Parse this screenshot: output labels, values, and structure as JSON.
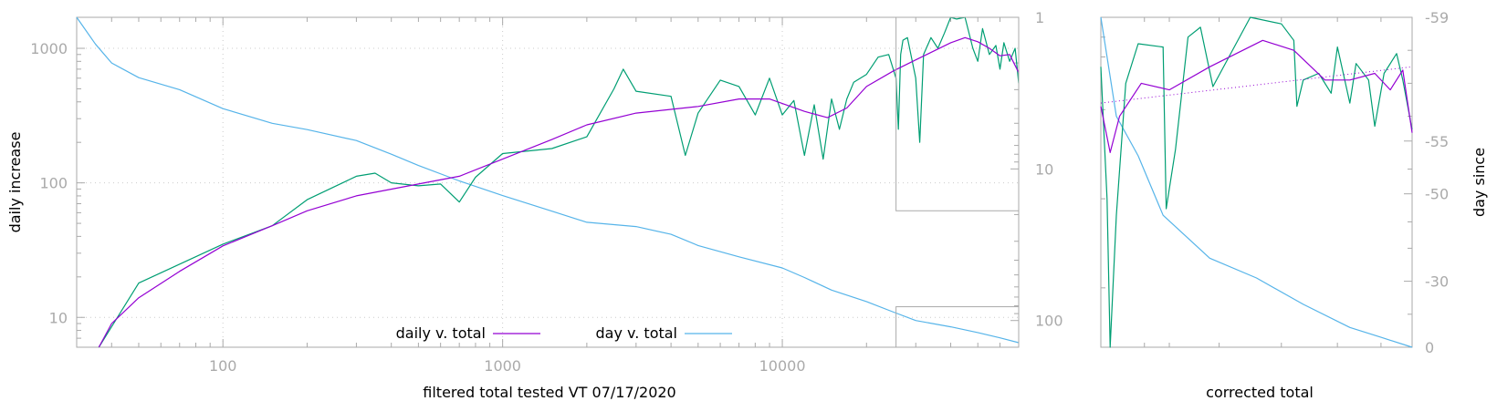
{
  "colors": {
    "daily": "#9400d3",
    "day": "#56b4e9",
    "raw": "#009e73",
    "axis": "#aaaaaa"
  },
  "chart_data": [
    {
      "type": "line",
      "xlabel": "filtered total tested VT 07/17/2020",
      "ylabel": "daily increase",
      "x_scale": "log",
      "y_scale": "log",
      "y2_scale": "log",
      "xlim": [
        30,
        70000
      ],
      "ylim": [
        6,
        1700
      ],
      "y2lim": [
        1,
        150
      ],
      "y2_reversed": true,
      "x_ticks": [
        "100",
        "1000",
        "10000"
      ],
      "y_ticks": [
        "10",
        "100",
        "1000"
      ],
      "y2_ticks": [
        "1",
        "10",
        "100"
      ],
      "grid": true,
      "legend_position": "bottom-center",
      "legend": [
        "daily v. total",
        "day v. total"
      ],
      "series": [
        {
          "name": "daily v. total",
          "axis": "y",
          "x": [
            36,
            40,
            50,
            70,
            100,
            150,
            200,
            300,
            500,
            700,
            1000,
            1500,
            2000,
            3000,
            5000,
            7000,
            9000,
            12000,
            14500,
            17000,
            20000,
            25000,
            30000,
            40000,
            45000,
            50000,
            55000,
            60000,
            65000,
            70000
          ],
          "y": [
            6,
            9,
            14,
            22,
            34,
            48,
            62,
            80,
            98,
            112,
            150,
            210,
            270,
            330,
            370,
            420,
            420,
            340,
            305,
            360,
            520,
            680,
            820,
            1100,
            1200,
            1120,
            1000,
            880,
            900,
            660
          ]
        },
        {
          "name": "day v. total",
          "axis": "y2",
          "x": [
            30,
            35,
            40,
            50,
            70,
            100,
            150,
            200,
            300,
            400,
            500,
            700,
            1000,
            1500,
            2000,
            3000,
            4000,
            5000,
            7000,
            10000,
            12000,
            15000,
            20000,
            25000,
            30000,
            40000,
            50000,
            60000,
            70000
          ],
          "y": [
            1,
            1.5,
            2,
            2.5,
            3,
            4,
            5,
            5.5,
            6.5,
            8,
            9.5,
            12,
            15,
            19,
            22.5,
            24,
            27,
            32,
            38,
            45,
            52,
            63,
            75,
            88,
            100,
            110,
            120,
            130,
            140
          ]
        },
        {
          "axis": "y",
          "x": [
            36,
            50,
            100,
            150,
            200,
            300,
            350,
            400,
            500,
            600,
            700,
            800,
            1000,
            1500,
            2000,
            2500,
            2700,
            3000,
            4000,
            4500,
            5000,
            6000,
            7000,
            8000,
            9000,
            10000,
            11000,
            12000,
            13000,
            14000,
            15000,
            16000,
            17000,
            18000,
            20000,
            22000,
            24000,
            25500,
            26000,
            26500,
            27000,
            28000,
            30000,
            31000,
            32000,
            34000,
            36000,
            38000,
            40000,
            42000,
            45000,
            48000,
            50000,
            52000,
            55000,
            58000,
            60000,
            62000,
            65000,
            68000,
            70000
          ],
          "y": [
            6,
            18,
            35,
            48,
            75,
            112,
            118,
            100,
            95,
            98,
            72,
            110,
            165,
            180,
            220,
            500,
            700,
            480,
            440,
            160,
            330,
            580,
            520,
            320,
            600,
            320,
            410,
            160,
            380,
            150,
            420,
            250,
            420,
            560,
            640,
            860,
            900,
            600,
            250,
            900,
            1150,
            1200,
            600,
            200,
            900,
            1200,
            1000,
            1300,
            1700,
            1650,
            1700,
            1000,
            800,
            1400,
            900,
            1050,
            700,
            1100,
            800,
            1000,
            550
          ]
        }
      ],
      "inset_frame_top": {
        "x_range": [
          25500,
          70000
        ],
        "y_range": [
          62,
          1700
        ]
      },
      "inset_frame_bottom": {
        "x_range": [
          25500,
          70000
        ],
        "y_range": [
          6,
          12
        ]
      }
    },
    {
      "type": "line",
      "xlabel": "corrected total",
      "ylabel": "day since",
      "y2_ticks": [
        "-59",
        "-55",
        "-50",
        "-30",
        "0"
      ],
      "series": [
        {
          "name": "daily v. total",
          "axis": "y",
          "points": [
            [
              0.0,
              0.27
            ],
            [
              0.03,
              0.41
            ],
            [
              0.06,
              0.3
            ],
            [
              0.13,
              0.2
            ],
            [
              0.22,
              0.22
            ],
            [
              0.35,
              0.15
            ],
            [
              0.52,
              0.07
            ],
            [
              0.62,
              0.1
            ],
            [
              0.72,
              0.19
            ],
            [
              0.8,
              0.19
            ],
            [
              0.88,
              0.17
            ],
            [
              0.93,
              0.22
            ],
            [
              0.97,
              0.16
            ],
            [
              1.0,
              0.35
            ]
          ]
        },
        {
          "name": "day v. total",
          "axis": "y2",
          "points": [
            [
              0.0,
              0.0
            ],
            [
              0.05,
              0.3
            ],
            [
              0.12,
              0.42
            ],
            [
              0.2,
              0.6
            ],
            [
              0.35,
              0.73
            ],
            [
              0.5,
              0.79
            ],
            [
              0.65,
              0.87
            ],
            [
              0.8,
              0.94
            ],
            [
              0.9,
              0.97
            ],
            [
              1.0,
              1.0
            ]
          ]
        },
        {
          "axis": "y",
          "points": [
            [
              0.0,
              0.15
            ],
            [
              0.02,
              0.55
            ],
            [
              0.03,
              1.0
            ],
            [
              0.05,
              0.6
            ],
            [
              0.08,
              0.2
            ],
            [
              0.12,
              0.08
            ],
            [
              0.2,
              0.09
            ],
            [
              0.21,
              0.58
            ],
            [
              0.24,
              0.4
            ],
            [
              0.28,
              0.06
            ],
            [
              0.32,
              0.03
            ],
            [
              0.36,
              0.21
            ],
            [
              0.48,
              0.0
            ],
            [
              0.58,
              0.02
            ],
            [
              0.62,
              0.07
            ],
            [
              0.63,
              0.27
            ],
            [
              0.65,
              0.19
            ],
            [
              0.7,
              0.17
            ],
            [
              0.74,
              0.23
            ],
            [
              0.76,
              0.09
            ],
            [
              0.8,
              0.26
            ],
            [
              0.82,
              0.14
            ],
            [
              0.86,
              0.19
            ],
            [
              0.88,
              0.33
            ],
            [
              0.91,
              0.17
            ],
            [
              0.95,
              0.11
            ],
            [
              0.97,
              0.19
            ],
            [
              1.0,
              0.34
            ]
          ]
        },
        {
          "axis": "y",
          "style": "dotted",
          "points": [
            [
              0.0,
              0.26
            ],
            [
              1.0,
              0.15
            ]
          ]
        }
      ]
    }
  ]
}
